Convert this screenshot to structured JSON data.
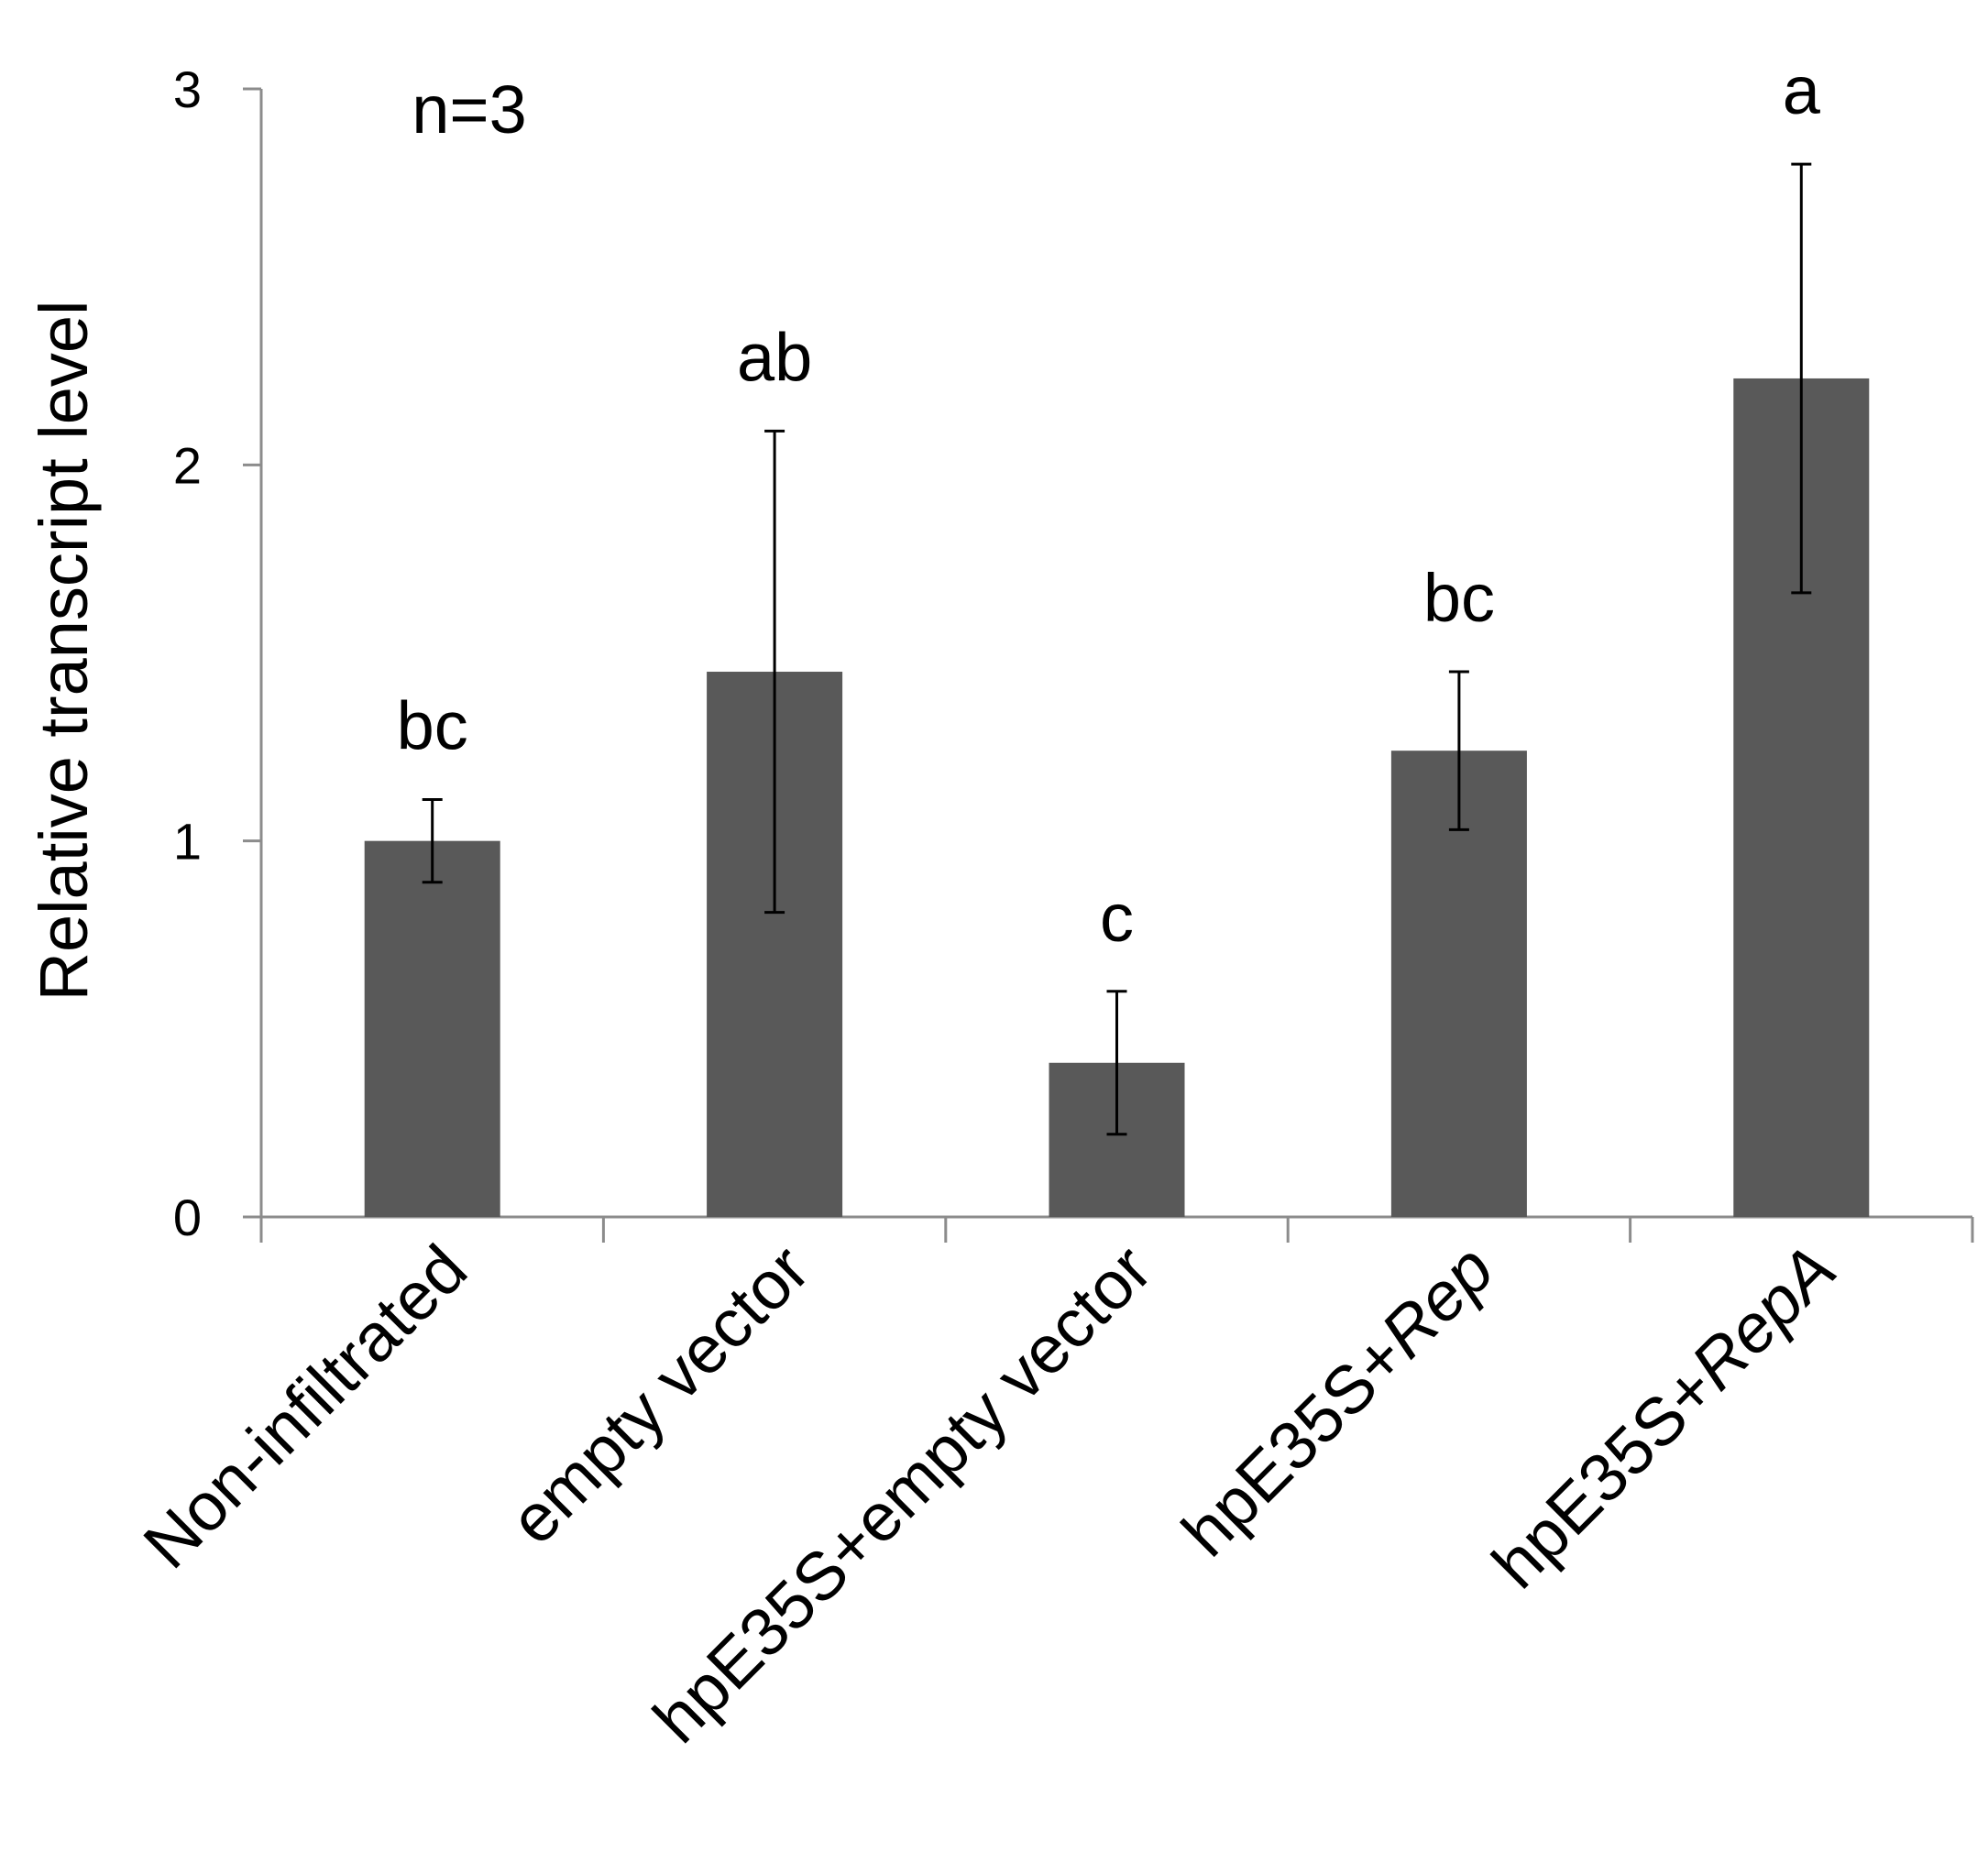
{
  "chart_data": {
    "type": "bar",
    "title": "",
    "xlabel": "",
    "ylabel": "Relative transcript level",
    "ylim": [
      0,
      3
    ],
    "yticks": [
      "0",
      "1",
      "2",
      "3"
    ],
    "annotation": "n=3",
    "grid": false,
    "legend": "none",
    "categories": [
      {
        "prefix": "Non-infiltrated",
        "italic": ""
      },
      {
        "prefix": "empty vector",
        "italic": ""
      },
      {
        "prefix": "hpE35S+empty vector",
        "italic": ""
      },
      {
        "prefix": "hpE35S+",
        "italic": "Rep"
      },
      {
        "prefix": "hpE35S+",
        "italic": "RepA"
      }
    ],
    "values": [
      1.0,
      1.45,
      0.41,
      1.24,
      2.23
    ],
    "error": [
      0.11,
      0.64,
      0.19,
      0.21,
      0.57
    ],
    "significance": [
      "bc",
      "ab",
      "c",
      "bc",
      "a"
    ],
    "colors": {
      "bar": "#595959",
      "axis": "#8c8c8c",
      "error": "#000000"
    }
  }
}
